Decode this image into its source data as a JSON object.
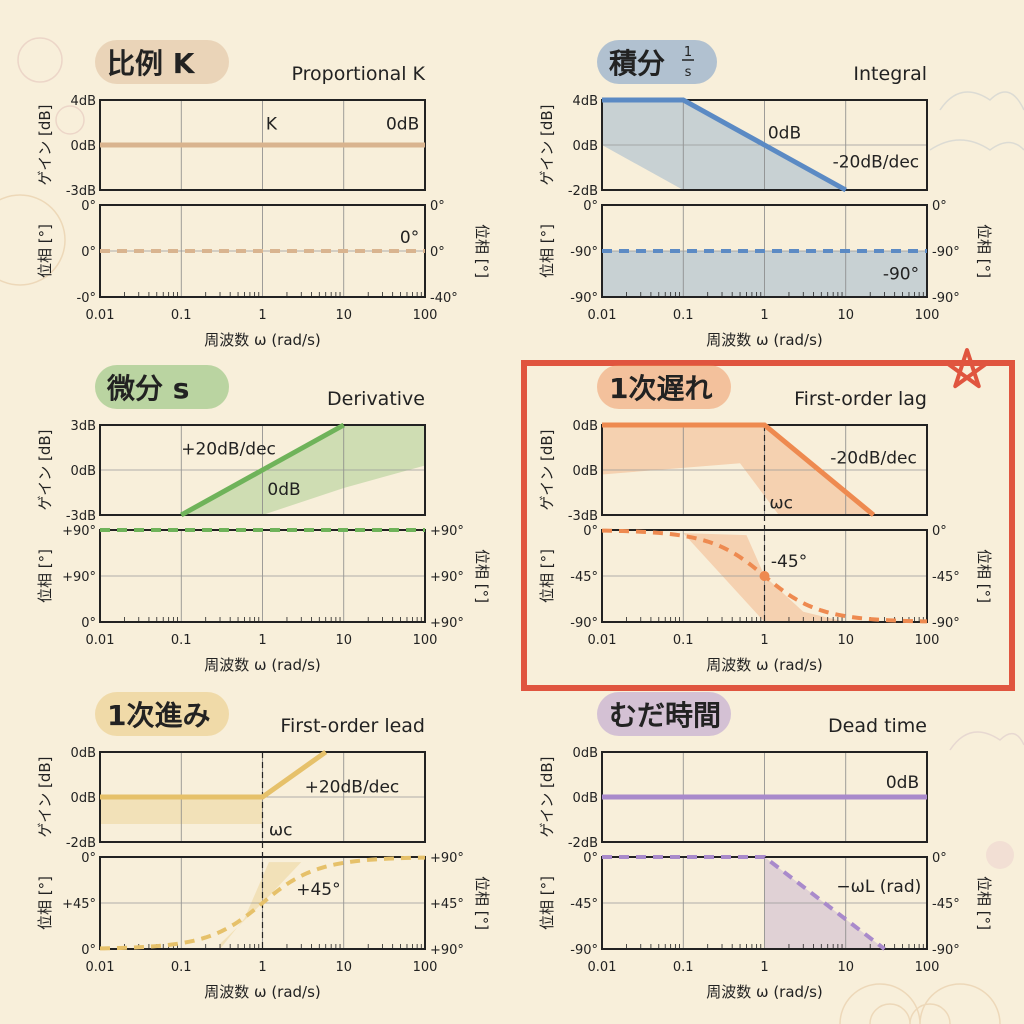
{
  "x_axis": {
    "ticks": [
      "0.01",
      "0.1",
      "1",
      "10",
      "100"
    ],
    "xlim": [
      0.01,
      100
    ],
    "label": "周波数 ω (rad/s)"
  },
  "gain_axis_label": "ゲイン [dB]",
  "phase_axis_label": "位相 [°]",
  "highlight_color": "#e0553f",
  "chart_data": [
    {
      "type": "line",
      "title": "比例 K",
      "subtitle": "Proportional K",
      "color": "#d9b48f",
      "gain": {
        "ticks": [
          "4dB",
          "0dB",
          "-3dB"
        ],
        "ylim": [
          -20,
          20
        ],
        "points": [
          [
            0.01,
            0
          ],
          [
            100,
            0
          ]
        ],
        "fill": [],
        "annotations": [
          {
            "text": "K",
            "w": 1.1,
            "v": 7,
            "anchor": "start"
          },
          {
            "text": "0dB",
            "w": 85,
            "v": 7,
            "anchor": "end"
          }
        ]
      },
      "phase": {
        "ticks_left": [
          "0°",
          "0°",
          "-0°"
        ],
        "ticks_right": [
          "0°",
          "0°",
          "-40°"
        ],
        "ylim": [
          -45,
          45
        ],
        "points": [
          [
            0.01,
            0
          ],
          [
            100,
            0
          ]
        ],
        "fill": [],
        "annotations": [
          {
            "text": "0°",
            "w": 85,
            "v": 8,
            "anchor": "end"
          }
        ]
      }
    },
    {
      "type": "line",
      "title": "積分",
      "title_frac": {
        "num": "1",
        "den": "s"
      },
      "subtitle": "Integral",
      "color": "#5b8ac4",
      "gain": {
        "ticks": [
          "4dB",
          "0dB",
          "-2dB"
        ],
        "ylim": [
          -20,
          20
        ],
        "points": [
          [
            0.01,
            20
          ],
          [
            0.1,
            20
          ],
          [
            1,
            0
          ],
          [
            10,
            -20
          ]
        ],
        "fill": [
          [
            0.01,
            20
          ],
          [
            0.1,
            20
          ],
          [
            1,
            0
          ],
          [
            10,
            -20
          ],
          [
            0.1,
            -20
          ],
          [
            0.01,
            0
          ]
        ],
        "annotations": [
          {
            "text": "0dB",
            "w": 1.1,
            "v": 3,
            "anchor": "start"
          },
          {
            "text": "-20dB/dec",
            "w": 80,
            "v": -10,
            "anchor": "end"
          }
        ]
      },
      "phase": {
        "ticks_left": [
          "0°",
          "-90°",
          "-90°"
        ],
        "ticks_right": [
          "0°",
          "-90°",
          "-90°"
        ],
        "ylim": [
          -135,
          -45
        ],
        "points": [
          [
            0.01,
            -90
          ],
          [
            100,
            -90
          ]
        ],
        "fill": [
          [
            0.01,
            -90
          ],
          [
            100,
            -90
          ],
          [
            100,
            -135
          ],
          [
            0.01,
            -135
          ]
        ],
        "annotations": [
          {
            "text": "-90°",
            "w": 80,
            "v": -118,
            "anchor": "end"
          }
        ]
      }
    },
    {
      "type": "line",
      "title": "微分 s",
      "subtitle": "Derivative",
      "color": "#6fb35a",
      "gain": {
        "ticks": [
          "3dB",
          "0dB",
          "-3dB"
        ],
        "ylim": [
          -20,
          20
        ],
        "points": [
          [
            0.1,
            -20
          ],
          [
            1,
            0
          ],
          [
            10,
            20
          ]
        ],
        "fill": [
          [
            0.1,
            -20
          ],
          [
            10,
            20
          ],
          [
            100,
            20
          ],
          [
            100,
            2
          ],
          [
            10,
            -8
          ],
          [
            1,
            -20
          ]
        ],
        "annotations": [
          {
            "text": "+20dB/dec",
            "w": 0.1,
            "v": 7,
            "anchor": "start"
          },
          {
            "text": "0dB",
            "w": 1.15,
            "v": -11,
            "anchor": "start"
          }
        ]
      },
      "phase": {
        "ticks_left": [
          "+90°",
          "+90°",
          "0°"
        ],
        "ticks_right": [
          "+90°",
          "+90°",
          "+90°"
        ],
        "ylim": [
          0,
          90
        ],
        "points": [
          [
            0.01,
            90
          ],
          [
            100,
            90
          ]
        ],
        "fill": [],
        "annotations": []
      }
    },
    {
      "type": "line",
      "title": "1次遅れ",
      "subtitle": "First-order lag",
      "color": "#ee8a50",
      "highlighted": true,
      "corner": 1,
      "gain": {
        "ticks": [
          "0dB",
          "0dB",
          "-3dB"
        ],
        "ylim": [
          -20,
          20
        ],
        "points": [
          [
            0.01,
            20
          ],
          [
            1,
            20
          ],
          [
            22,
            -20
          ]
        ],
        "fill": [
          [
            0.01,
            20
          ],
          [
            1,
            20
          ],
          [
            22,
            -20
          ],
          [
            1.5,
            -20
          ],
          [
            0.5,
            3
          ],
          [
            0.01,
            -2
          ]
        ],
        "annotations": [
          {
            "text": "-20dB/dec",
            "w": 75,
            "v": 3,
            "anchor": "end"
          },
          {
            "text": "ωc",
            "w": 1.15,
            "v": -17,
            "anchor": "start"
          }
        ]
      },
      "phase": {
        "ticks_left": [
          "0°",
          "-45°",
          "-90°"
        ],
        "ticks_right": [
          "0°",
          "-45°",
          "-90°"
        ],
        "ylim": [
          -90,
          0
        ],
        "curve": "lag",
        "fill": [
          [
            0.1,
            -3
          ],
          [
            0.6,
            -5
          ],
          [
            1,
            -45
          ],
          [
            3,
            -80
          ],
          [
            10,
            -90
          ],
          [
            1,
            -90
          ]
        ],
        "marker": [
          1,
          -45
        ],
        "annotations": [
          {
            "text": "-45°",
            "w": 1.2,
            "v": -36,
            "anchor": "start"
          }
        ]
      }
    },
    {
      "type": "line",
      "title": "1次進み",
      "subtitle": "First-order lead",
      "color": "#e6c16a",
      "corner": 1,
      "gain": {
        "ticks": [
          "0dB",
          "0dB",
          "-2dB"
        ],
        "ylim": [
          -20,
          20
        ],
        "points": [
          [
            0.01,
            0
          ],
          [
            1,
            0
          ],
          [
            6,
            20
          ]
        ],
        "fill": [
          [
            0.01,
            0
          ],
          [
            1,
            0
          ],
          [
            1,
            -12
          ],
          [
            0.01,
            -12
          ]
        ],
        "annotations": [
          {
            "text": "+20dB/dec",
            "w": 3.3,
            "v": 2,
            "anchor": "start"
          },
          {
            "text": "ωc",
            "w": 1.2,
            "v": -17,
            "anchor": "start"
          }
        ]
      },
      "phase": {
        "ticks_left": [
          "0°",
          "+45°",
          "0°"
        ],
        "ticks_right": [
          "+90°",
          "+45°",
          "+90°"
        ],
        "ylim": [
          0,
          90
        ],
        "curve": "lead",
        "fill": [
          [
            0.3,
            5
          ],
          [
            1,
            45
          ],
          [
            3,
            85
          ],
          [
            1.2,
            85
          ],
          [
            0.6,
            30
          ],
          [
            0.3,
            0
          ]
        ],
        "annotations": [
          {
            "text": "+45°",
            "w": 2.6,
            "v": 53,
            "anchor": "start"
          }
        ]
      }
    },
    {
      "type": "line",
      "title": "むだ時間",
      "subtitle": "Dead time",
      "color": "#a98acb",
      "gain": {
        "ticks": [
          "0dB",
          "0dB",
          "-2dB"
        ],
        "ylim": [
          -20,
          20
        ],
        "points": [
          [
            0.01,
            0
          ],
          [
            100,
            0
          ]
        ],
        "fill": [],
        "annotations": [
          {
            "text": "0dB",
            "w": 80,
            "v": 4,
            "anchor": "end"
          }
        ]
      },
      "phase": {
        "ticks_left": [
          "0°",
          "-45°",
          "-90°"
        ],
        "ticks_right": [
          "0°",
          "-45°",
          "-90°"
        ],
        "ylim": [
          -90,
          0
        ],
        "points": [
          [
            0.01,
            0
          ],
          [
            1,
            0
          ],
          [
            30,
            -90
          ]
        ],
        "fill": [
          [
            1,
            0
          ],
          [
            30,
            -90
          ],
          [
            1,
            -90
          ]
        ],
        "annotations": [
          {
            "text": "−ωL (rad)",
            "w": 85,
            "v": -34,
            "anchor": "end"
          }
        ]
      }
    }
  ]
}
